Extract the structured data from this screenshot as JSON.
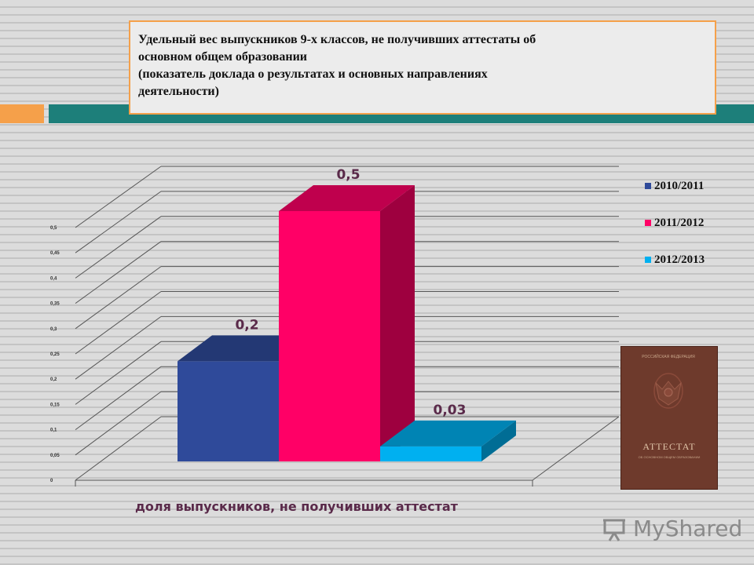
{
  "slide": {
    "title_lines": [
      "Удельный вес выпускников 9-х классов, не получивших аттестаты об",
      "основном общем образовании",
      "(показатель доклада о результатах и основных направлениях",
      "деятельности)"
    ]
  },
  "chart_data": {
    "type": "bar",
    "title": "",
    "xlabel": "доля выпускников, не получивших аттестат",
    "ylabel": "",
    "ylim": [
      0,
      0.5
    ],
    "yticks": [
      "0",
      "0,05",
      "0,1",
      "0,15",
      "0,2",
      "0,25",
      "0,3",
      "0,35",
      "0,4",
      "0,45",
      "0,5"
    ],
    "grid": true,
    "legend_position": "right",
    "series": [
      {
        "name": "2010/2011",
        "values": [
          0.2
        ],
        "label": "0,2",
        "color": "#2f4a9a"
      },
      {
        "name": "2011/2012",
        "values": [
          0.5
        ],
        "label": "0,5",
        "color": "#ff0066"
      },
      {
        "name": "2012/2013",
        "values": [
          0.03
        ],
        "label": "0,03",
        "color": "#00b0f0"
      }
    ]
  },
  "certificate": {
    "header": "РОССИЙСКАЯ ФЕДЕРАЦИЯ",
    "title": "АТТЕСТАТ",
    "subtitle": "ОБ ОСНОВНОМ ОБЩЕМ ОБРАЗОВАНИИ"
  },
  "watermark": {
    "text": "MyShared"
  }
}
